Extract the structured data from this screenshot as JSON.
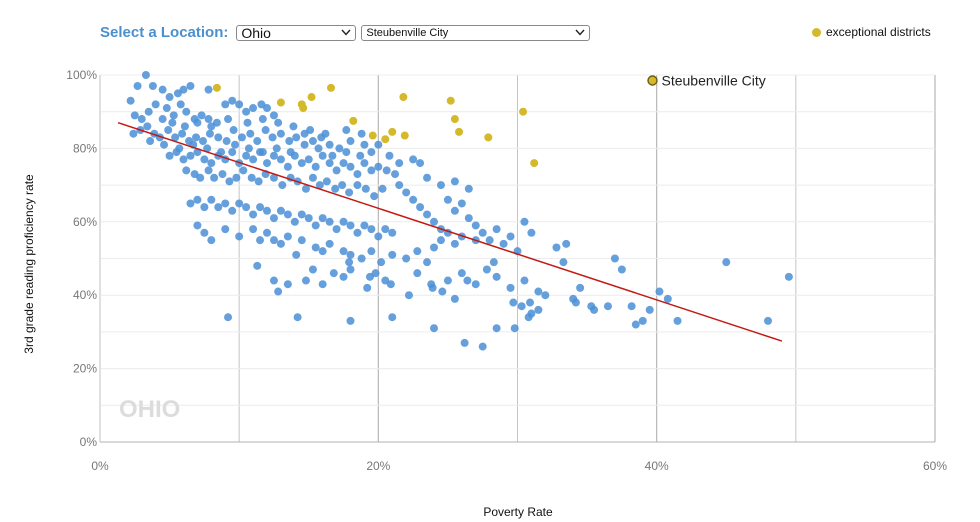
{
  "controls": {
    "label": "Select a Location:",
    "state_value": "Ohio",
    "district_value": "Steubenville City"
  },
  "legend": {
    "label": "exceptional districts",
    "color": "#d4b92b"
  },
  "colors": {
    "points": "#4a8fd6",
    "exceptional": "#d4b92b",
    "highlight": "#b59a1f",
    "trend": "#c21a12",
    "grid": "#c4c4c4",
    "watermark": "#dcdcdc"
  },
  "watermark": "OHIO",
  "chart_data": {
    "type": "scatter",
    "xlabel": "Poverty Rate",
    "ylabel": "3rd grade reading proficiency rate",
    "xlim": [
      0,
      60
    ],
    "ylim": [
      0,
      100
    ],
    "x_ticks": [
      "0%",
      "20%",
      "40%",
      "60%"
    ],
    "y_ticks": [
      "0%",
      "20%",
      "40%",
      "60%",
      "80%",
      "100%"
    ],
    "grid": true,
    "highlight": {
      "label": "Steubenville City",
      "x": 39.7,
      "y": 98.5
    },
    "trendline": {
      "x": [
        1.3,
        49.0
      ],
      "y": [
        87,
        27.5
      ]
    },
    "exceptional_points": [
      [
        8.4,
        96.5
      ],
      [
        13.0,
        92.5
      ],
      [
        14.5,
        92.0
      ],
      [
        14.6,
        91.0
      ],
      [
        15.2,
        94.0
      ],
      [
        16.6,
        96.5
      ],
      [
        18.2,
        87.5
      ],
      [
        19.6,
        83.5
      ],
      [
        20.5,
        82.5
      ],
      [
        21.0,
        84.5
      ],
      [
        21.8,
        94.0
      ],
      [
        21.9,
        83.5
      ],
      [
        25.2,
        93.0
      ],
      [
        25.5,
        88.0
      ],
      [
        25.8,
        84.5
      ],
      [
        27.9,
        83.0
      ],
      [
        30.4,
        90.0
      ],
      [
        31.2,
        76.0
      ]
    ],
    "points": [
      [
        3.3,
        100
      ],
      [
        2.7,
        97
      ],
      [
        3.8,
        97
      ],
      [
        4.5,
        96
      ],
      [
        5.0,
        94
      ],
      [
        5.6,
        95
      ],
      [
        6.0,
        96
      ],
      [
        6.5,
        97
      ],
      [
        7.8,
        96
      ],
      [
        9.0,
        92
      ],
      [
        2.2,
        93
      ],
      [
        2.5,
        89
      ],
      [
        3.0,
        88
      ],
      [
        3.5,
        90
      ],
      [
        4.0,
        92
      ],
      [
        4.8,
        91
      ],
      [
        5.3,
        89
      ],
      [
        5.8,
        92
      ],
      [
        6.2,
        90
      ],
      [
        6.8,
        88
      ],
      [
        7.3,
        89
      ],
      [
        7.8,
        88
      ],
      [
        8.4,
        87
      ],
      [
        9.5,
        93
      ],
      [
        10.0,
        92
      ],
      [
        10.5,
        90
      ],
      [
        11.0,
        91
      ],
      [
        11.6,
        92
      ],
      [
        12.0,
        91
      ],
      [
        12.5,
        89
      ],
      [
        2.4,
        84
      ],
      [
        2.9,
        85
      ],
      [
        3.4,
        86
      ],
      [
        3.9,
        84
      ],
      [
        4.3,
        83
      ],
      [
        4.9,
        85
      ],
      [
        5.4,
        83
      ],
      [
        5.9,
        84
      ],
      [
        6.4,
        82
      ],
      [
        6.9,
        83
      ],
      [
        7.4,
        82
      ],
      [
        7.9,
        84
      ],
      [
        8.5,
        83
      ],
      [
        9.1,
        82
      ],
      [
        9.6,
        85
      ],
      [
        10.2,
        83
      ],
      [
        10.8,
        84
      ],
      [
        11.3,
        82
      ],
      [
        11.9,
        85
      ],
      [
        12.4,
        83
      ],
      [
        13.0,
        84
      ],
      [
        13.6,
        82
      ],
      [
        14.1,
        83
      ],
      [
        14.7,
        84
      ],
      [
        15.3,
        82
      ],
      [
        15.9,
        83
      ],
      [
        16.5,
        81
      ],
      [
        17.2,
        80
      ],
      [
        18.0,
        82
      ],
      [
        19.0,
        81
      ],
      [
        5.0,
        78
      ],
      [
        5.5,
        79
      ],
      [
        6.0,
        77
      ],
      [
        6.5,
        78
      ],
      [
        7.0,
        79
      ],
      [
        7.5,
        77
      ],
      [
        8.0,
        76
      ],
      [
        8.5,
        78
      ],
      [
        9.0,
        77
      ],
      [
        9.5,
        79
      ],
      [
        10.0,
        76
      ],
      [
        10.5,
        78
      ],
      [
        11.0,
        77
      ],
      [
        11.5,
        79
      ],
      [
        12.0,
        76
      ],
      [
        12.5,
        78
      ],
      [
        13.0,
        77
      ],
      [
        13.5,
        75
      ],
      [
        14.0,
        78
      ],
      [
        14.5,
        76
      ],
      [
        15.0,
        77
      ],
      [
        15.5,
        75
      ],
      [
        16.0,
        78
      ],
      [
        16.5,
        76
      ],
      [
        17.0,
        74
      ],
      [
        17.5,
        76
      ],
      [
        18.0,
        75
      ],
      [
        18.5,
        73
      ],
      [
        19.0,
        76
      ],
      [
        19.5,
        74
      ],
      [
        20.0,
        75
      ],
      [
        20.6,
        74
      ],
      [
        21.2,
        73
      ],
      [
        6.2,
        74
      ],
      [
        6.8,
        73
      ],
      [
        7.2,
        72
      ],
      [
        7.8,
        74
      ],
      [
        8.2,
        72
      ],
      [
        8.8,
        73
      ],
      [
        9.3,
        71
      ],
      [
        9.8,
        72
      ],
      [
        10.3,
        74
      ],
      [
        10.9,
        72
      ],
      [
        11.4,
        71
      ],
      [
        11.9,
        73
      ],
      [
        12.5,
        72
      ],
      [
        13.1,
        70
      ],
      [
        13.7,
        72
      ],
      [
        14.2,
        71
      ],
      [
        14.8,
        69
      ],
      [
        15.3,
        72
      ],
      [
        15.8,
        70
      ],
      [
        16.3,
        71
      ],
      [
        16.9,
        69
      ],
      [
        17.4,
        70
      ],
      [
        17.9,
        68
      ],
      [
        18.5,
        70
      ],
      [
        19.1,
        69
      ],
      [
        19.7,
        67
      ],
      [
        20.3,
        69
      ],
      [
        6.5,
        65
      ],
      [
        7.0,
        66
      ],
      [
        7.5,
        64
      ],
      [
        8.0,
        66
      ],
      [
        8.5,
        64
      ],
      [
        9.0,
        65
      ],
      [
        9.5,
        63
      ],
      [
        10.0,
        65
      ],
      [
        10.5,
        64
      ],
      [
        11.0,
        62
      ],
      [
        11.5,
        64
      ],
      [
        12.0,
        63
      ],
      [
        12.5,
        61
      ],
      [
        13.0,
        63
      ],
      [
        13.5,
        62
      ],
      [
        14.0,
        60
      ],
      [
        14.5,
        62
      ],
      [
        15.0,
        61
      ],
      [
        15.5,
        59
      ],
      [
        16.0,
        61
      ],
      [
        16.5,
        60
      ],
      [
        17.0,
        58
      ],
      [
        17.5,
        60
      ],
      [
        18.0,
        59
      ],
      [
        18.5,
        57
      ],
      [
        19.0,
        59
      ],
      [
        19.5,
        58
      ],
      [
        20.0,
        56
      ],
      [
        20.5,
        58
      ],
      [
        21.0,
        57
      ],
      [
        7.0,
        59
      ],
      [
        7.5,
        57
      ],
      [
        8.0,
        55
      ],
      [
        9.0,
        58
      ],
      [
        10.0,
        56
      ],
      [
        11.0,
        58
      ],
      [
        11.5,
        55
      ],
      [
        12.0,
        57
      ],
      [
        12.5,
        55
      ],
      [
        13.0,
        54
      ],
      [
        13.5,
        56
      ],
      [
        14.5,
        55
      ],
      [
        15.5,
        53
      ],
      [
        16.0,
        52
      ],
      [
        16.5,
        54
      ],
      [
        17.5,
        52
      ],
      [
        18.0,
        51
      ],
      [
        18.8,
        50
      ],
      [
        19.5,
        52
      ],
      [
        20.2,
        49
      ],
      [
        21.0,
        51
      ],
      [
        22.0,
        50
      ],
      [
        22.8,
        52
      ],
      [
        23.5,
        49
      ],
      [
        24.0,
        53
      ],
      [
        24.5,
        55
      ],
      [
        25.0,
        57
      ],
      [
        25.5,
        54
      ],
      [
        26.0,
        56
      ],
      [
        27.0,
        55
      ],
      [
        21.5,
        70
      ],
      [
        22.0,
        68
      ],
      [
        22.5,
        66
      ],
      [
        23.0,
        64
      ],
      [
        23.5,
        62
      ],
      [
        24.0,
        60
      ],
      [
        24.5,
        58
      ],
      [
        25.0,
        66
      ],
      [
        25.5,
        63
      ],
      [
        26.0,
        65
      ],
      [
        26.5,
        61
      ],
      [
        27.0,
        59
      ],
      [
        27.5,
        57
      ],
      [
        28.0,
        55
      ],
      [
        28.5,
        58
      ],
      [
        29.0,
        54
      ],
      [
        29.5,
        56
      ],
      [
        30.0,
        52
      ],
      [
        30.5,
        60
      ],
      [
        31.0,
        57
      ],
      [
        23.0,
        76
      ],
      [
        23.5,
        72
      ],
      [
        24.5,
        70
      ],
      [
        25.5,
        71
      ],
      [
        26.5,
        69
      ],
      [
        19.5,
        79
      ],
      [
        20.0,
        81
      ],
      [
        20.8,
        78
      ],
      [
        21.5,
        76
      ],
      [
        22.5,
        77
      ],
      [
        11.3,
        48
      ],
      [
        12.5,
        44
      ],
      [
        13.5,
        43
      ],
      [
        14.8,
        44
      ],
      [
        16.0,
        43
      ],
      [
        17.5,
        45
      ],
      [
        18.0,
        47
      ],
      [
        19.2,
        42
      ],
      [
        19.8,
        46
      ],
      [
        20.5,
        44
      ],
      [
        22.2,
        40
      ],
      [
        23.8,
        43
      ],
      [
        25.0,
        44
      ],
      [
        26.0,
        46
      ],
      [
        27.0,
        43
      ],
      [
        27.8,
        47
      ],
      [
        28.5,
        45
      ],
      [
        29.5,
        42
      ],
      [
        30.5,
        44
      ],
      [
        31.5,
        41
      ],
      [
        9.2,
        34
      ],
      [
        12.8,
        41
      ],
      [
        14.2,
        34
      ],
      [
        18.0,
        33
      ],
      [
        21.0,
        34
      ],
      [
        24.0,
        31
      ],
      [
        25.5,
        39
      ],
      [
        26.2,
        27
      ],
      [
        27.5,
        26
      ],
      [
        28.5,
        31
      ],
      [
        29.8,
        31
      ],
      [
        30.3,
        37
      ],
      [
        31.0,
        35
      ],
      [
        32.0,
        40
      ],
      [
        32.8,
        53
      ],
      [
        33.5,
        54
      ],
      [
        34.0,
        39
      ],
      [
        34.5,
        42
      ],
      [
        35.5,
        36
      ],
      [
        36.5,
        37
      ],
      [
        37.0,
        50
      ],
      [
        37.5,
        47
      ],
      [
        38.2,
        37
      ],
      [
        38.5,
        32
      ],
      [
        39.0,
        33
      ],
      [
        39.5,
        36
      ],
      [
        40.2,
        41
      ],
      [
        40.8,
        39
      ],
      [
        41.5,
        33
      ],
      [
        45.0,
        49
      ],
      [
        48.0,
        33
      ],
      [
        49.5,
        45
      ],
      [
        30.8,
        34
      ],
      [
        31.5,
        36
      ],
      [
        33.3,
        49
      ],
      [
        34.2,
        38
      ],
      [
        35.3,
        37
      ],
      [
        29.7,
        38
      ],
      [
        30.9,
        38
      ],
      [
        28.3,
        49
      ],
      [
        22.8,
        46
      ],
      [
        23.9,
        42
      ],
      [
        24.6,
        41
      ],
      [
        26.4,
        44
      ],
      [
        20.9,
        43
      ],
      [
        19.4,
        45
      ],
      [
        16.8,
        46
      ],
      [
        15.3,
        47
      ],
      [
        17.9,
        49
      ],
      [
        14.1,
        51
      ],
      [
        4.5,
        88
      ],
      [
        5.2,
        87
      ],
      [
        6.1,
        86
      ],
      [
        7.0,
        87
      ],
      [
        8.0,
        86
      ],
      [
        9.2,
        88
      ],
      [
        10.6,
        87
      ],
      [
        11.7,
        88
      ],
      [
        12.8,
        87
      ],
      [
        13.9,
        86
      ],
      [
        15.1,
        85
      ],
      [
        16.2,
        84
      ],
      [
        17.7,
        85
      ],
      [
        18.8,
        84
      ],
      [
        3.6,
        82
      ],
      [
        4.6,
        81
      ],
      [
        5.7,
        80
      ],
      [
        6.7,
        81
      ],
      [
        7.7,
        80
      ],
      [
        8.7,
        79
      ],
      [
        9.7,
        81
      ],
      [
        10.7,
        80
      ],
      [
        11.7,
        79
      ],
      [
        12.7,
        80
      ],
      [
        13.7,
        79
      ],
      [
        14.7,
        81
      ],
      [
        15.7,
        80
      ],
      [
        16.7,
        78
      ],
      [
        17.7,
        79
      ],
      [
        18.7,
        78
      ]
    ]
  }
}
